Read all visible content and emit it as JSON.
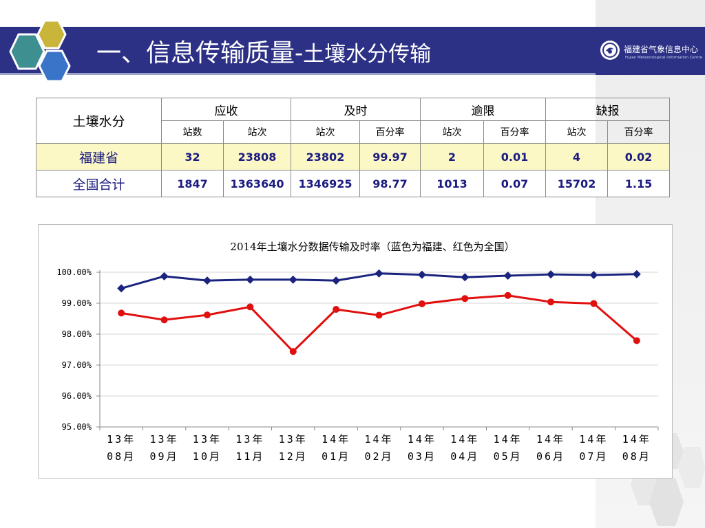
{
  "header": {
    "title": "一、信息传输质量-",
    "title_suffix": "土壤水分传输",
    "org_name": "福建省气象信息中心",
    "org_name_en": "Fujian Meteorological Information Centre"
  },
  "table": {
    "corner": "土壤水分",
    "groups": [
      "应收",
      "及时",
      "逾限",
      "缺报"
    ],
    "subheaders": [
      "站数",
      "站次",
      "站次",
      "百分率",
      "站次",
      "百分率",
      "站次",
      "百分率"
    ],
    "rows": [
      {
        "label": "福建省",
        "cells": [
          "32",
          "23808",
          "23802",
          "99.97",
          "2",
          "0.01",
          "4",
          "0.02"
        ]
      },
      {
        "label": "全国合计",
        "cells": [
          "1847",
          "1363640",
          "1346925",
          "98.77",
          "1013",
          "0.07",
          "15702",
          "1.15"
        ]
      }
    ]
  },
  "chart_data": {
    "type": "line",
    "title": "2014年土壤水分数据传输及时率（蓝色为福建、红色为全国）",
    "xlabel": "",
    "ylabel": "",
    "categories": [
      "13年 08月",
      "13年 09月",
      "13年 10月",
      "13年 11月",
      "13年 12月",
      "14年 01月",
      "14年 02月",
      "14年 03月",
      "14年 04月",
      "14年 05月",
      "14年 06月",
      "14年 07月",
      "14年 08月"
    ],
    "yticks": [
      "95.00%",
      "96.00%",
      "97.00%",
      "98.00%",
      "99.00%",
      "100.00%"
    ],
    "ylim": [
      95,
      100
    ],
    "grid": true,
    "series": [
      {
        "color": "#1a237e",
        "marker": "diamond",
        "values": [
          99.48,
          99.87,
          99.73,
          99.76,
          99.76,
          99.73,
          99.96,
          99.92,
          99.84,
          99.89,
          99.93,
          99.91,
          99.94
        ]
      },
      {
        "color": "#e0100f",
        "marker": "circle",
        "values": [
          98.68,
          98.46,
          98.62,
          98.88,
          97.44,
          98.8,
          98.61,
          98.98,
          99.15,
          99.25,
          99.04,
          98.99,
          97.79
        ]
      }
    ]
  }
}
